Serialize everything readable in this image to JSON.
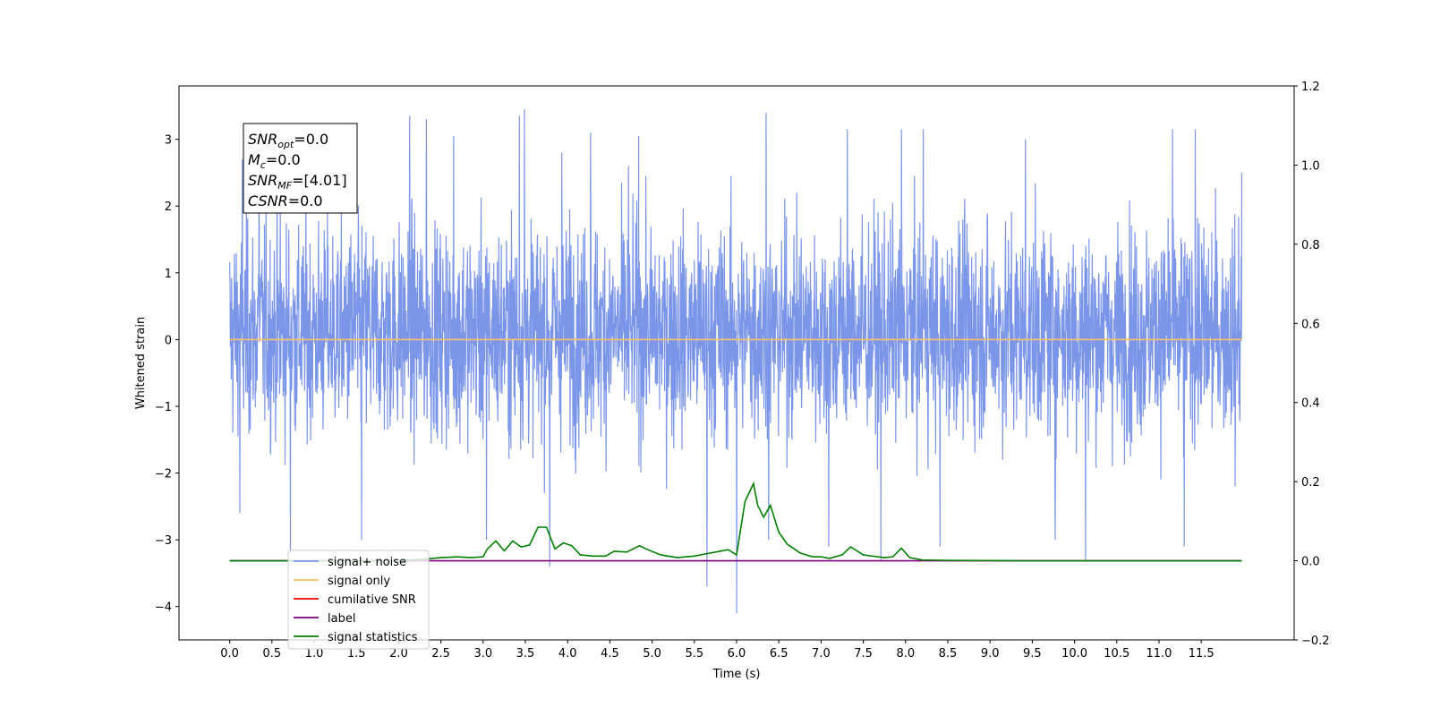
{
  "chart_data": {
    "type": "line",
    "xlabel": "Time (s)",
    "ylabel": "Whitened strain",
    "xlim": [
      -0.6,
      12.6
    ],
    "ylim": [
      -4.5,
      3.8
    ],
    "y2lim": [
      -0.2,
      1.2
    ],
    "x_ticks": [
      0.0,
      0.5,
      1.0,
      1.5,
      2.0,
      2.5,
      3.0,
      3.5,
      4.0,
      4.5,
      5.0,
      5.5,
      6.0,
      6.5,
      7.0,
      7.5,
      8.0,
      8.5,
      9.0,
      9.5,
      10.0,
      10.5,
      11.0,
      11.5
    ],
    "x_tick_labels": [
      "0.0",
      "0.5",
      "1.0",
      "1.5",
      "2.0",
      "2.5",
      "3.0",
      "3.5",
      "4.0",
      "4.5",
      "5.0",
      "5.5",
      "6.0",
      "6.5",
      "7.0",
      "7.5",
      "8.0",
      "8.5",
      "9.0",
      "9.5",
      "10.0",
      "10.5",
      "11.0",
      "11.5"
    ],
    "y_ticks": [
      3,
      2,
      1,
      0,
      -1,
      -2,
      -3,
      -4
    ],
    "y_tick_labels": [
      "3",
      "2",
      "1",
      "0",
      "−1",
      "−2",
      "−3",
      "−4"
    ],
    "y2_ticks": [
      1.2,
      1.0,
      0.8,
      0.6,
      0.4,
      0.2,
      0.0,
      -0.2
    ],
    "y2_tick_labels": [
      "1.2",
      "1.0",
      "0.8",
      "0.6",
      "0.4",
      "0.2",
      "0.0",
      "−0.2"
    ],
    "grid": false,
    "legend_position": "bottom-left",
    "annotation": {
      "lines": [
        {
          "base": "SNR",
          "sub": "opt",
          "rest": "=0.0"
        },
        {
          "base": "M",
          "sub": "c",
          "rest": "=0.0"
        },
        {
          "base": "SNR",
          "sub": "MF",
          "rest": "=[4.01]"
        },
        {
          "base": "CSNR",
          "sub": "",
          "rest": "=0.0"
        }
      ]
    },
    "series": [
      {
        "name": "signal+ noise",
        "color": "#7b96e8",
        "axis": "left",
        "description": "noisy whitened strain, roughly from -2.9 to 3.2 throughout 0 to 12 s",
        "x_range": [
          0.0,
          11.98
        ],
        "typical_envelope": [
          -1.9,
          2.2
        ],
        "peaks": [
          [
            0.15,
            2.7
          ],
          [
            0.35,
            2.9
          ],
          [
            0.6,
            2.0
          ],
          [
            2.13,
            3.35
          ],
          [
            2.33,
            3.3
          ],
          [
            2.65,
            3.05
          ],
          [
            3.43,
            3.35
          ],
          [
            3.49,
            3.45
          ],
          [
            3.93,
            2.8
          ],
          [
            4.27,
            3.1
          ],
          [
            4.72,
            2.6
          ],
          [
            4.84,
            3.05
          ],
          [
            6.35,
            3.4
          ],
          [
            7.31,
            3.15
          ],
          [
            7.95,
            3.15
          ],
          [
            8.21,
            3.15
          ],
          [
            9.42,
            3.0
          ],
          [
            11.16,
            3.15
          ],
          [
            11.43,
            3.15
          ],
          [
            11.98,
            2.5
          ]
        ],
        "troughs": [
          [
            0.12,
            -2.6
          ],
          [
            0.72,
            -3.2
          ],
          [
            1.56,
            -3.0
          ],
          [
            3.04,
            -3.0
          ],
          [
            3.79,
            -3.4
          ],
          [
            5.65,
            -3.7
          ],
          [
            6.0,
            -4.1
          ],
          [
            6.38,
            -3.0
          ],
          [
            7.09,
            -3.1
          ],
          [
            7.71,
            -3.3
          ],
          [
            8.41,
            -3.1
          ],
          [
            9.77,
            -3.0
          ],
          [
            10.13,
            -3.3
          ],
          [
            11.3,
            -3.1
          ],
          [
            11.9,
            -2.2
          ]
        ]
      },
      {
        "name": "signal only",
        "color": "#ffbf66",
        "axis": "left",
        "x": [
          0.0,
          11.98
        ],
        "y": [
          0.0,
          0.0
        ]
      },
      {
        "name": "cumilative SNR",
        "color": "#ff0000",
        "axis": "right",
        "x": [],
        "y": []
      },
      {
        "name": "label",
        "color": "#800080",
        "axis": "right",
        "x": [
          0.0,
          11.98
        ],
        "y": [
          0.0,
          0.0
        ]
      },
      {
        "name": "signal statistics",
        "color": "#008000",
        "axis": "right",
        "x": [
          0.0,
          1.0,
          2.0,
          2.3,
          2.5,
          2.7,
          2.85,
          3.0,
          3.05,
          3.15,
          3.25,
          3.35,
          3.45,
          3.55,
          3.65,
          3.75,
          3.85,
          3.95,
          4.05,
          4.15,
          4.3,
          4.45,
          4.55,
          4.7,
          4.85,
          4.95,
          5.1,
          5.3,
          5.5,
          5.6,
          5.75,
          5.9,
          6.0,
          6.1,
          6.2,
          6.25,
          6.32,
          6.4,
          6.5,
          6.6,
          6.75,
          6.9,
          7.0,
          7.1,
          7.25,
          7.35,
          7.5,
          7.6,
          7.75,
          7.85,
          7.95,
          8.05,
          8.2,
          8.5,
          9.5,
          10.5,
          11.98
        ],
        "y": [
          0.0,
          0.0,
          0.0,
          0.004,
          0.008,
          0.01,
          0.008,
          0.01,
          0.03,
          0.05,
          0.025,
          0.05,
          0.035,
          0.04,
          0.085,
          0.085,
          0.03,
          0.045,
          0.038,
          0.015,
          0.012,
          0.012,
          0.024,
          0.022,
          0.038,
          0.028,
          0.015,
          0.008,
          0.012,
          0.016,
          0.022,
          0.028,
          0.015,
          0.15,
          0.195,
          0.14,
          0.11,
          0.14,
          0.072,
          0.042,
          0.02,
          0.01,
          0.01,
          0.006,
          0.015,
          0.035,
          0.015,
          0.012,
          0.008,
          0.01,
          0.032,
          0.008,
          0.002,
          0.001,
          0.0,
          0.0,
          0.0
        ]
      }
    ]
  }
}
